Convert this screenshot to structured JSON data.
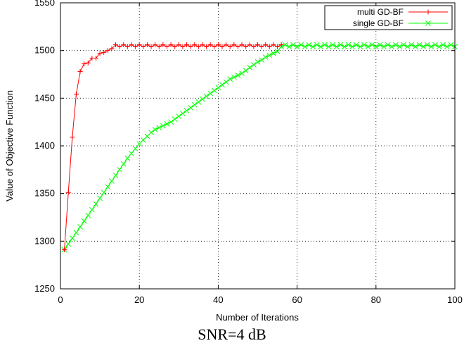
{
  "caption": "SNR=4  dB",
  "chart_data": {
    "type": "line",
    "xlabel": "Number of Iterations",
    "ylabel": "Value of Objective Function",
    "xlim": [
      0,
      100
    ],
    "ylim": [
      1250,
      1550
    ],
    "xticks": [
      0,
      20,
      40,
      60,
      80,
      100
    ],
    "yticks": [
      1250,
      1300,
      1350,
      1400,
      1450,
      1500,
      1550
    ],
    "grid": true,
    "legend_position": "top-right",
    "series": [
      {
        "name": "multi GD-BF",
        "color": "#ff0000",
        "marker": "plus",
        "x": [
          1,
          2,
          3,
          4,
          5,
          6,
          7,
          8,
          9,
          10,
          11,
          12,
          13,
          14,
          15,
          16,
          17,
          18,
          19,
          20,
          21,
          22,
          23,
          24,
          25,
          26,
          27,
          28,
          29,
          30,
          31,
          32,
          33,
          34,
          35,
          36,
          37,
          38,
          39,
          40,
          41,
          42,
          43,
          44,
          45,
          46,
          47,
          48,
          49,
          50,
          51,
          52,
          53,
          54,
          55,
          56
        ],
        "y": [
          1291,
          1351,
          1409,
          1454,
          1478,
          1486,
          1487,
          1492,
          1492,
          1497,
          1498,
          1500,
          1502,
          1506,
          1504,
          1506,
          1504,
          1506,
          1504,
          1506,
          1504,
          1506,
          1504,
          1506,
          1504,
          1506,
          1504,
          1506,
          1504,
          1506,
          1504,
          1506,
          1504,
          1506,
          1504,
          1506,
          1504,
          1506,
          1504,
          1506,
          1504,
          1506,
          1504,
          1506,
          1504,
          1506,
          1504,
          1506,
          1504,
          1506,
          1504,
          1506,
          1504,
          1506,
          1504,
          1506
        ]
      },
      {
        "name": "single GD-BF",
        "color": "#00ff00",
        "marker": "cross",
        "x": [
          1,
          2,
          3,
          4,
          5,
          6,
          7,
          8,
          9,
          10,
          11,
          12,
          13,
          14,
          15,
          16,
          17,
          18,
          19,
          20,
          21,
          22,
          23,
          24,
          25,
          26,
          27,
          28,
          29,
          30,
          31,
          32,
          33,
          34,
          35,
          36,
          37,
          38,
          39,
          40,
          41,
          42,
          43,
          44,
          45,
          46,
          47,
          48,
          49,
          50,
          51,
          52,
          53,
          54,
          55,
          56,
          57,
          58,
          59,
          60,
          61,
          62,
          63,
          64,
          65,
          66,
          67,
          68,
          69,
          70,
          71,
          72,
          73,
          74,
          75,
          76,
          77,
          78,
          79,
          80,
          81,
          82,
          83,
          84,
          85,
          86,
          87,
          88,
          89,
          90,
          91,
          92,
          93,
          94,
          95,
          96,
          97,
          98,
          99,
          100
        ],
        "y": [
          1291,
          1297,
          1303,
          1309,
          1315,
          1321,
          1327,
          1333,
          1339,
          1345,
          1351,
          1357,
          1363,
          1369,
          1375,
          1381,
          1387,
          1392,
          1397,
          1402,
          1406,
          1410,
          1414,
          1417,
          1419,
          1421,
          1423,
          1425,
          1428,
          1431,
          1434,
          1437,
          1440,
          1443,
          1446,
          1449,
          1452,
          1455,
          1458,
          1461,
          1464,
          1467,
          1470,
          1472,
          1474,
          1476,
          1479,
          1482,
          1485,
          1488,
          1490,
          1493,
          1495,
          1497,
          1499,
          1504,
          1506,
          1504,
          1506,
          1504,
          1506,
          1504,
          1506,
          1504,
          1506,
          1504,
          1506,
          1504,
          1506,
          1504,
          1506,
          1504,
          1506,
          1504,
          1506,
          1504,
          1506,
          1504,
          1506,
          1504,
          1506,
          1504,
          1506,
          1504,
          1506,
          1504,
          1506,
          1504,
          1506,
          1504,
          1506,
          1504,
          1506,
          1504,
          1506,
          1504,
          1506,
          1504,
          1506,
          1504
        ]
      }
    ]
  }
}
